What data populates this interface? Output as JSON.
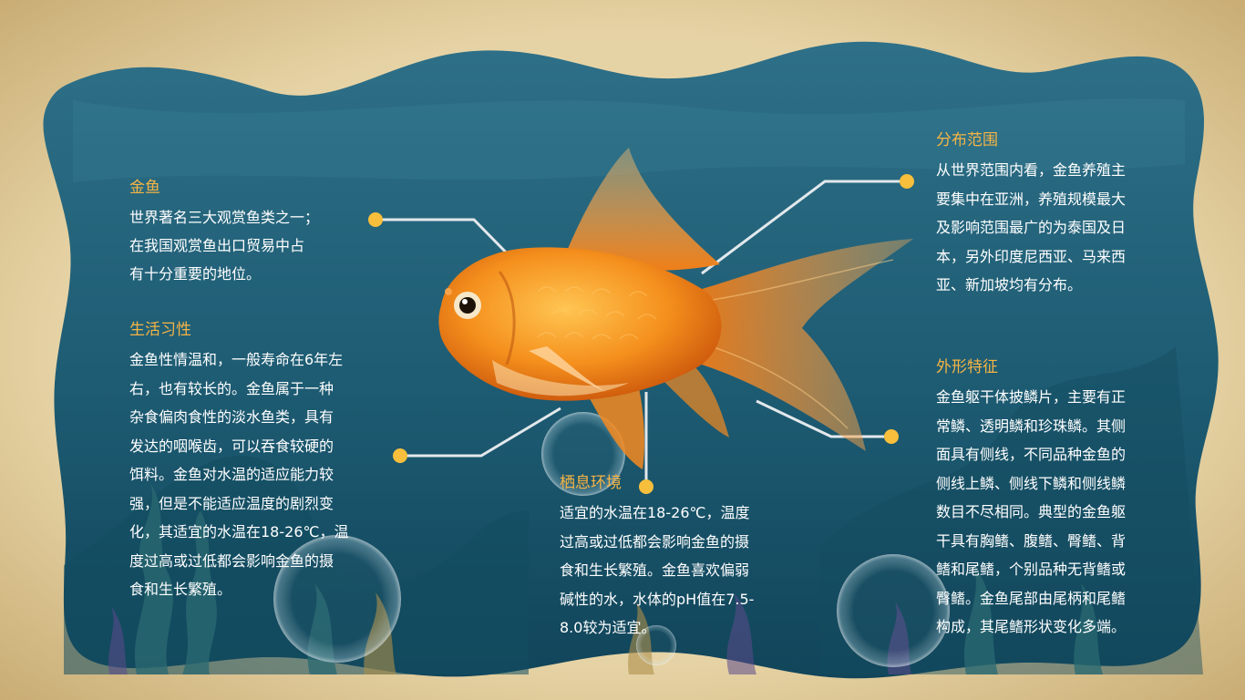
{
  "sections": {
    "jinyu": {
      "title": "金鱼",
      "lines": [
        "世界著名三大观赏鱼类之一；",
        "在我国观赏鱼出口贸易中占",
        "有十分重要的地位。"
      ]
    },
    "xixing": {
      "title": "生活习性",
      "lines": [
        "金鱼性情温和，一般寿命在6年左",
        "右，也有较长的。金鱼属于一种",
        "杂食偏肉食性的淡水鱼类，具有",
        "发达的咽喉齿，可以吞食较硬的",
        "饵料。金鱼对水温的适应能力较",
        "强，但是不能适应温度的剧烈变",
        "化，其适宜的水温在18-26℃，温",
        "度过高或过低都会影响金鱼的摄",
        "食和生长繁殖。"
      ]
    },
    "qixi": {
      "title": "栖息环境",
      "lines": [
        "适宜的水温在18-26℃，温度",
        "过高或过低都会影响金鱼的摄",
        "食和生长繁殖。金鱼喜欢偏弱",
        "碱性的水，水体的pH值在7.5-",
        "8.0较为适宜。"
      ]
    },
    "fenbu": {
      "title": "分布范围",
      "lines": [
        "从世界范围内看，金鱼养殖主",
        "要集中在亚洲，养殖规模最大",
        "及影响范围最广的为泰国及日",
        "本，另外印度尼西亚、马来西",
        "亚、新加坡均有分布。"
      ]
    },
    "waixing": {
      "title": "外形特征",
      "lines": [
        "金鱼躯干体披鳞片，主要有正",
        "常鳞、透明鳞和珍珠鳞。其侧",
        "面具有侧线，不同品种金鱼的",
        "侧线上鳞、侧线下鳞和侧线鳞",
        "数目不尽相同。典型的金鱼躯",
        "干具有胸鳍、腹鳍、臀鳍、背",
        "鳍和尾鳍，个别品种无背鳍或",
        "臀鳍。金鱼尾部由尾柄和尾鳍",
        "构成，其尾鳍形状变化多端。"
      ]
    }
  },
  "colors": {
    "frame": "#e2cd9c",
    "water_top": "#2d6e85",
    "water_bottom": "#12465a",
    "heading": "#f5b445",
    "dot": "#f7bf3c",
    "line": "#e2e8ec",
    "fish_body": "#f38a1c",
    "text": "#ffffff"
  },
  "icons": [
    "goldfish-illustration",
    "bubble-icon",
    "seaweed-decoration"
  ]
}
